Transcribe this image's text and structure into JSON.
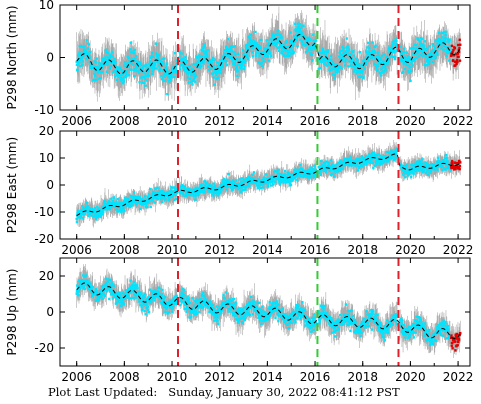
{
  "footer": {
    "label": "Plot Last Updated:",
    "timestamp": "Sunday, January 30, 2022 08:41:12 PST"
  },
  "colors": {
    "data": "#00e5ff",
    "error_bars": "#a9a9a9",
    "recent": "#e00000",
    "trend": "#000000",
    "event_red": "#e0202a",
    "event_green": "#33cc33"
  },
  "chart_data": [
    {
      "type": "scatter",
      "ylabel": "P298 North (mm)",
      "xlim": [
        2005.3,
        2022.5
      ],
      "ylim": [
        -10,
        10
      ],
      "yticks": [
        -10,
        0,
        10
      ],
      "xticks": [
        2006,
        2008,
        2010,
        2012,
        2014,
        2016,
        2018,
        2020,
        2022
      ],
      "event_lines": [
        {
          "x": 2010.25,
          "color": "red"
        },
        {
          "x": 2016.1,
          "color": "green"
        },
        {
          "x": 2019.5,
          "color": "red"
        }
      ],
      "trend": {
        "x": [
          2006,
          2007,
          2008,
          2009,
          2010,
          2011,
          2012,
          2013,
          2014,
          2015,
          2016,
          2016.2,
          2017,
          2018,
          2019,
          2019.5,
          2020,
          2021,
          2022
        ],
        "y": [
          0,
          -1.5,
          -2,
          -1.5,
          -2,
          -1.5,
          -1,
          0.5,
          2,
          3,
          3.5,
          -1,
          -0.5,
          -1,
          0,
          1,
          0,
          1.5,
          1.8
        ]
      },
      "seasonal_amplitude": 1.5,
      "scatter_spread": 2.5,
      "recent_x_range": [
        2021.7,
        2022.1
      ]
    },
    {
      "type": "scatter",
      "ylabel": "P298 East (mm)",
      "xlim": [
        2005.3,
        2022.5
      ],
      "ylim": [
        -20,
        20
      ],
      "yticks": [
        -20,
        -10,
        0,
        10,
        20
      ],
      "xticks": [
        2006,
        2008,
        2010,
        2012,
        2014,
        2016,
        2018,
        2020,
        2022
      ],
      "event_lines": [
        {
          "x": 2010.25,
          "color": "red"
        },
        {
          "x": 2016.1,
          "color": "green"
        },
        {
          "x": 2019.5,
          "color": "red"
        }
      ],
      "trend": {
        "x": [
          2006,
          2008,
          2010,
          2012,
          2014,
          2016,
          2018,
          2019.45,
          2019.55,
          2020,
          2021,
          2022
        ],
        "y": [
          -11,
          -7,
          -3,
          -1,
          2,
          5,
          9,
          11,
          7,
          6,
          7,
          8
        ]
      },
      "seasonal_amplitude": 0.8,
      "scatter_spread": 2.5,
      "recent_x_range": [
        2021.7,
        2022.1
      ]
    },
    {
      "type": "scatter",
      "ylabel": "P298 Up (mm)",
      "xlim": [
        2005.3,
        2022.5
      ],
      "ylim": [
        -30,
        30
      ],
      "yticks": [
        -20,
        0,
        20
      ],
      "xticks": [
        2006,
        2008,
        2010,
        2012,
        2014,
        2016,
        2018,
        2020,
        2022
      ],
      "event_lines": [
        {
          "x": 2010.25,
          "color": "red"
        },
        {
          "x": 2016.1,
          "color": "green"
        },
        {
          "x": 2019.5,
          "color": "red"
        }
      ],
      "trend": {
        "x": [
          2006,
          2008,
          2010,
          2012,
          2014,
          2016,
          2018,
          2019.5,
          2020,
          2021,
          2022
        ],
        "y": [
          14,
          10,
          6,
          2,
          0,
          -4,
          -6,
          -7,
          -9,
          -12,
          -12
        ]
      },
      "seasonal_amplitude": 3.5,
      "scatter_spread": 5,
      "recent_x_range": [
        2021.7,
        2022.1
      ]
    }
  ]
}
